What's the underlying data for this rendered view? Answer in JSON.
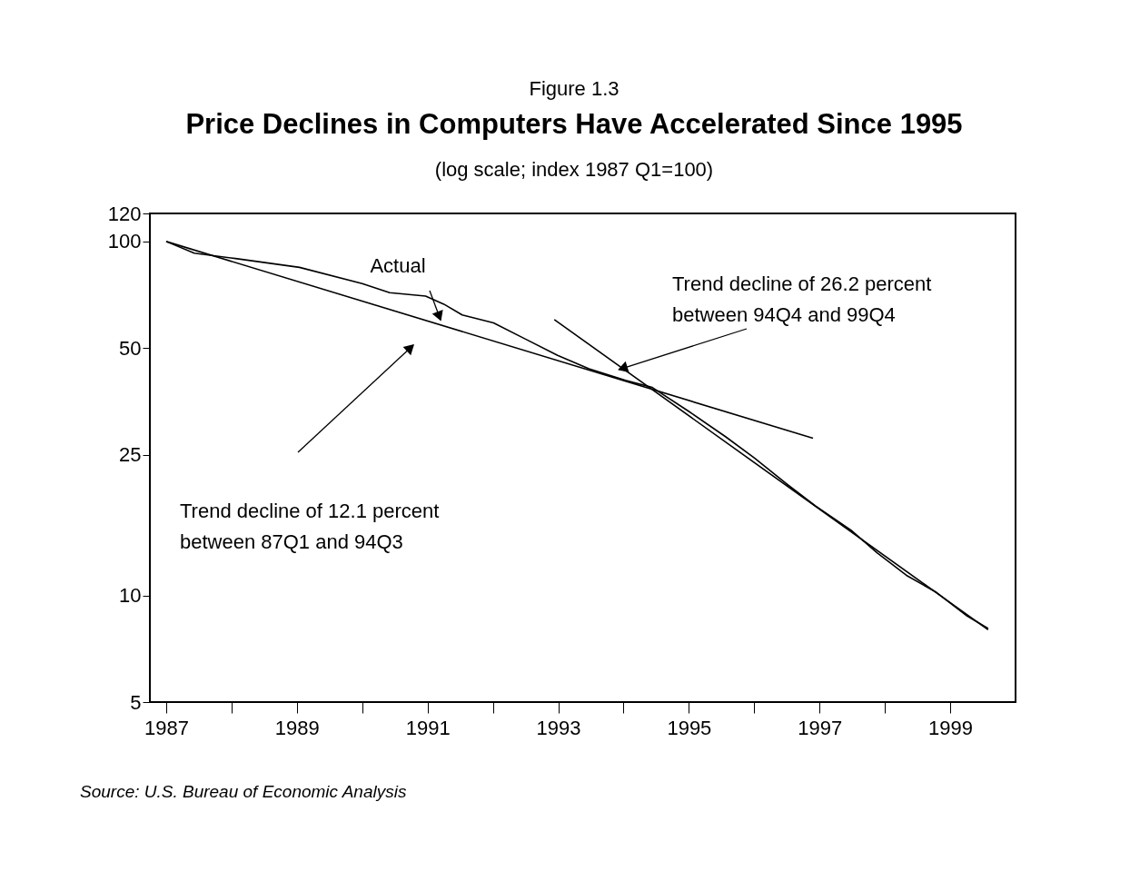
{
  "chart_data": {
    "type": "line",
    "title": "Price Declines in Computers Have Accelerated Since 1995",
    "subtitle": "(log scale; index 1987 Q1=100)",
    "x": [
      1987.0,
      1987.43,
      1988.06,
      1989.04,
      1990.0,
      1990.42,
      1990.97,
      1991.25,
      1991.53,
      1992.01,
      1992.5,
      1992.99,
      1993.47,
      1994.03,
      1994.44,
      1995.0,
      1995.56,
      1996.01,
      1996.49,
      1996.94,
      1997.5,
      1997.88,
      1998.33,
      1998.79,
      1999.26,
      1999.58
    ],
    "series": [
      {
        "color": "#000000",
        "values": [
          100,
          92.7,
          89.5,
          84.5,
          76.0,
          71.7,
          70.1,
          66.5,
          62.0,
          58.9,
          53.0,
          47.7,
          43.7,
          40.5,
          38.7,
          33.1,
          28.1,
          24.4,
          20.7,
          17.9,
          15.2,
          13.2,
          11.4,
          10.2,
          8.75,
          8.07
        ]
      },
      {
        "type": "line",
        "color": "#000000",
        "x": [
          1987.0,
          1996.9
        ],
        "values": [
          100,
          27.8
        ]
      },
      {
        "type": "line",
        "color": "#000000",
        "x": [
          1992.94,
          1999.58
        ],
        "values": [
          60.2,
          8.0
        ]
      }
    ],
    "xlim": [
      1986.75,
      2000.0
    ],
    "xticks": [
      {
        "value": 1987,
        "label": "1987"
      },
      {
        "value": 1988,
        "label": null
      },
      {
        "value": 1989,
        "label": "1989"
      },
      {
        "value": 1990,
        "label": null
      },
      {
        "value": 1991,
        "label": "1991"
      },
      {
        "value": 1992,
        "label": null
      },
      {
        "value": 1993,
        "label": "1993"
      },
      {
        "value": 1994,
        "label": null
      },
      {
        "value": 1995,
        "label": "1995"
      },
      {
        "value": 1996,
        "label": null
      },
      {
        "value": 1997,
        "label": "1997"
      },
      {
        "value": 1998,
        "label": null
      },
      {
        "value": 1999,
        "label": "1999"
      }
    ],
    "ylim": [
      5,
      120
    ],
    "yticks": [
      5,
      10,
      25,
      50,
      100,
      120
    ],
    "log": "y",
    "grid": false,
    "marker": "none",
    "line_style": "solid",
    "annotations": [
      "Figure 1.3",
      {
        "text": "Actual",
        "x": 1991.2,
        "y": 60
      },
      {
        "text": "Trend decline of 26.2 percent\nbetween 94Q4 and 99Q4",
        "x": 1993.93,
        "y": 43.5
      },
      "Trend decline of 12.1 percent\nbetween 87Q1 and 94Q3",
      "Source: U.S. Bureau of Economic Analysis"
    ]
  }
}
